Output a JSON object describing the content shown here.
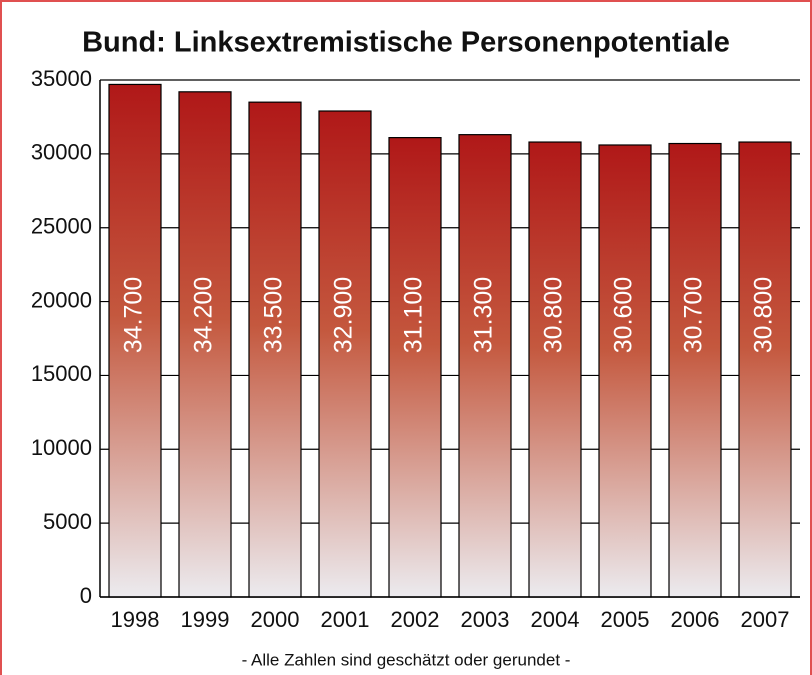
{
  "chart_data": {
    "type": "bar",
    "title": "Bund: Linksextremistische Personenpotentiale",
    "footnote": "- Alle Zahlen sind geschätzt oder gerundet -",
    "categories": [
      "1998",
      "1999",
      "2000",
      "2001",
      "2002",
      "2003",
      "2004",
      "2005",
      "2006",
      "2007"
    ],
    "values": [
      34700,
      34200,
      33500,
      32900,
      31100,
      31300,
      30800,
      30600,
      30700,
      30800
    ],
    "value_labels": [
      "34.700",
      "34.200",
      "33.500",
      "32.900",
      "31.100",
      "31.300",
      "30.800",
      "30.600",
      "30.700",
      "30.800"
    ],
    "color": "#b01818",
    "ylim": [
      0,
      35000
    ],
    "yticks": [
      0,
      5000,
      10000,
      15000,
      20000,
      25000,
      30000,
      35000
    ],
    "grid": true
  }
}
